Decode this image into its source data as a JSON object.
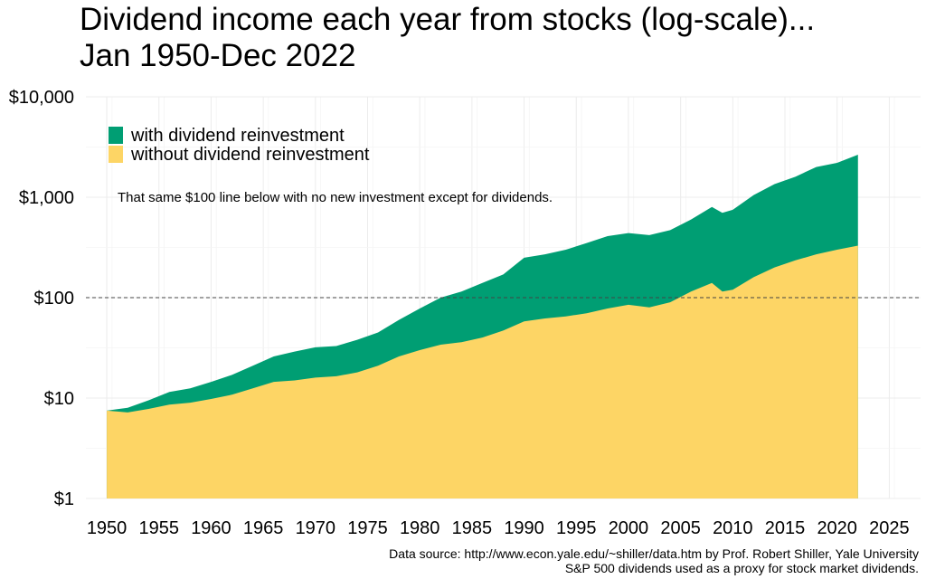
{
  "chart_data": {
    "type": "area",
    "title": "Dividend income each year from stocks (log-scale)...\nJan 1950-Dec 2022",
    "y_scale": "log",
    "ylim": [
      1,
      10000
    ],
    "xlim": [
      1948,
      2028
    ],
    "x_ticks": [
      1950,
      1955,
      1960,
      1965,
      1970,
      1975,
      1980,
      1985,
      1990,
      1995,
      2000,
      2005,
      2010,
      2015,
      2020,
      2025
    ],
    "y_ticks": [
      1,
      10,
      100,
      1000,
      10000
    ],
    "y_tick_labels": [
      "$1",
      "$10",
      "$100",
      "$1,000",
      "$10,000"
    ],
    "grid": true,
    "legend_position": "top-left",
    "reference_line": {
      "y": 100,
      "style": "dashed"
    },
    "annotation": "That same $100 line below with no new investment except for dividends.",
    "colors": {
      "with": "#009E73",
      "without": "#FDD565"
    },
    "series": [
      {
        "name": "with dividend reinvestment",
        "x": [
          1950,
          1952,
          1954,
          1956,
          1958,
          1960,
          1962,
          1964,
          1966,
          1968,
          1970,
          1972,
          1974,
          1976,
          1978,
          1980,
          1982,
          1984,
          1986,
          1988,
          1990,
          1992,
          1994,
          1996,
          1998,
          2000,
          2002,
          2004,
          2006,
          2008,
          2009,
          2010,
          2012,
          2014,
          2016,
          2018,
          2020,
          2022
        ],
        "values": [
          7.5,
          8,
          9.5,
          11.5,
          12.5,
          14.5,
          17,
          21,
          26,
          29,
          32,
          33,
          38,
          45,
          60,
          78,
          100,
          115,
          140,
          170,
          250,
          270,
          300,
          350,
          410,
          440,
          420,
          470,
          600,
          800,
          700,
          750,
          1050,
          1350,
          1600,
          2000,
          2200,
          2650
        ]
      },
      {
        "name": "without dividend reinvestment",
        "x": [
          1950,
          1952,
          1954,
          1956,
          1958,
          1960,
          1962,
          1964,
          1966,
          1968,
          1970,
          1972,
          1974,
          1976,
          1978,
          1980,
          1982,
          1984,
          1986,
          1988,
          1990,
          1992,
          1994,
          1996,
          1998,
          2000,
          2002,
          2004,
          2006,
          2008,
          2009,
          2010,
          2012,
          2014,
          2016,
          2018,
          2020,
          2022
        ],
        "values": [
          7.5,
          7.2,
          7.8,
          8.6,
          9,
          9.8,
          10.8,
          12.5,
          14.5,
          15,
          16,
          16.5,
          18,
          21,
          26,
          30,
          34,
          36,
          40,
          47,
          58,
          62,
          65,
          70,
          78,
          85,
          80,
          90,
          115,
          140,
          115,
          120,
          160,
          200,
          235,
          270,
          300,
          330
        ]
      }
    ]
  },
  "footer": {
    "source": "Data source: http://www.econ.yale.edu/~shiller/data.htm by Prof. Robert Shiller, Yale University",
    "note": "S&P 500 dividends used as a proxy for stock market dividends."
  }
}
